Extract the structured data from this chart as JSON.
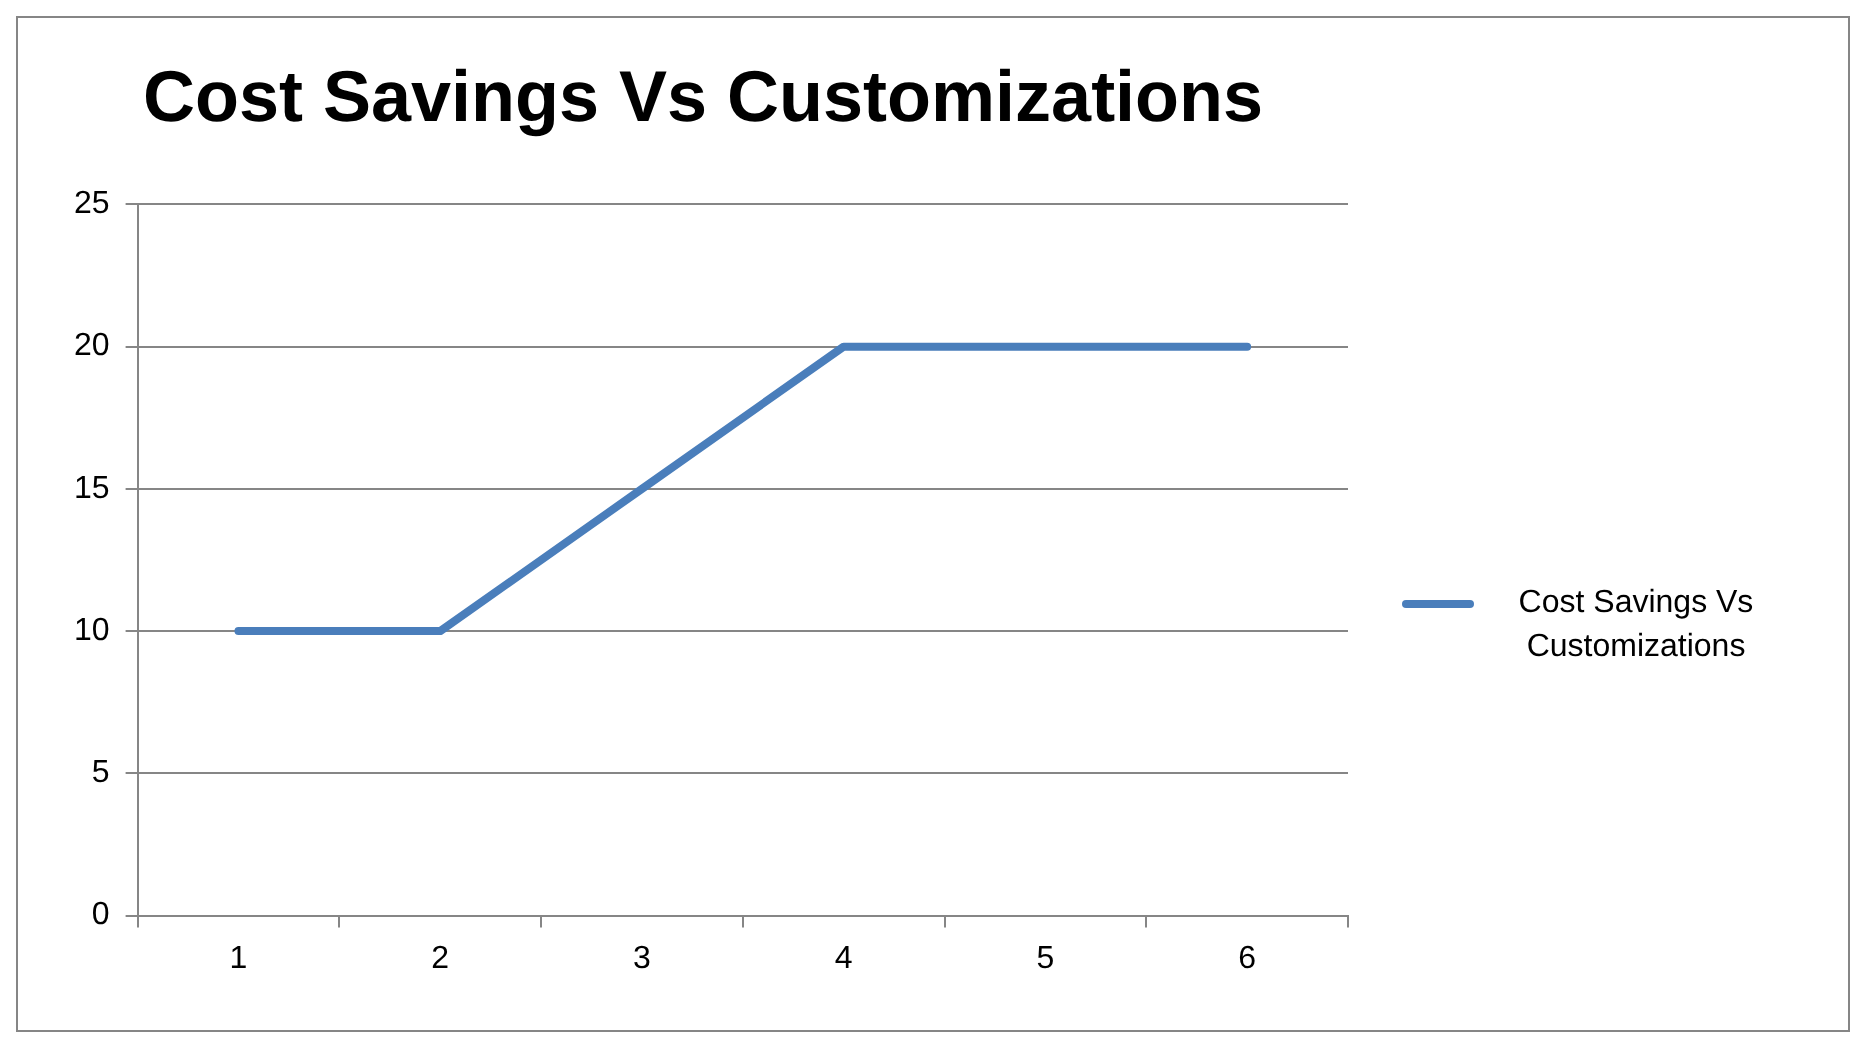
{
  "chart_data": {
    "type": "line",
    "title": "Cost Savings Vs Customizations",
    "categories": [
      "1",
      "2",
      "3",
      "4",
      "5",
      "6"
    ],
    "series": [
      {
        "name": "Cost Savings Vs Customizations",
        "color": "#4a7ebb",
        "values": [
          10,
          10,
          15,
          20,
          20,
          20
        ]
      }
    ],
    "ylim": [
      0,
      25
    ],
    "yticks": [
      0,
      5,
      10,
      15,
      20,
      25
    ],
    "grid": "y",
    "legend": "right",
    "marker": "none"
  }
}
